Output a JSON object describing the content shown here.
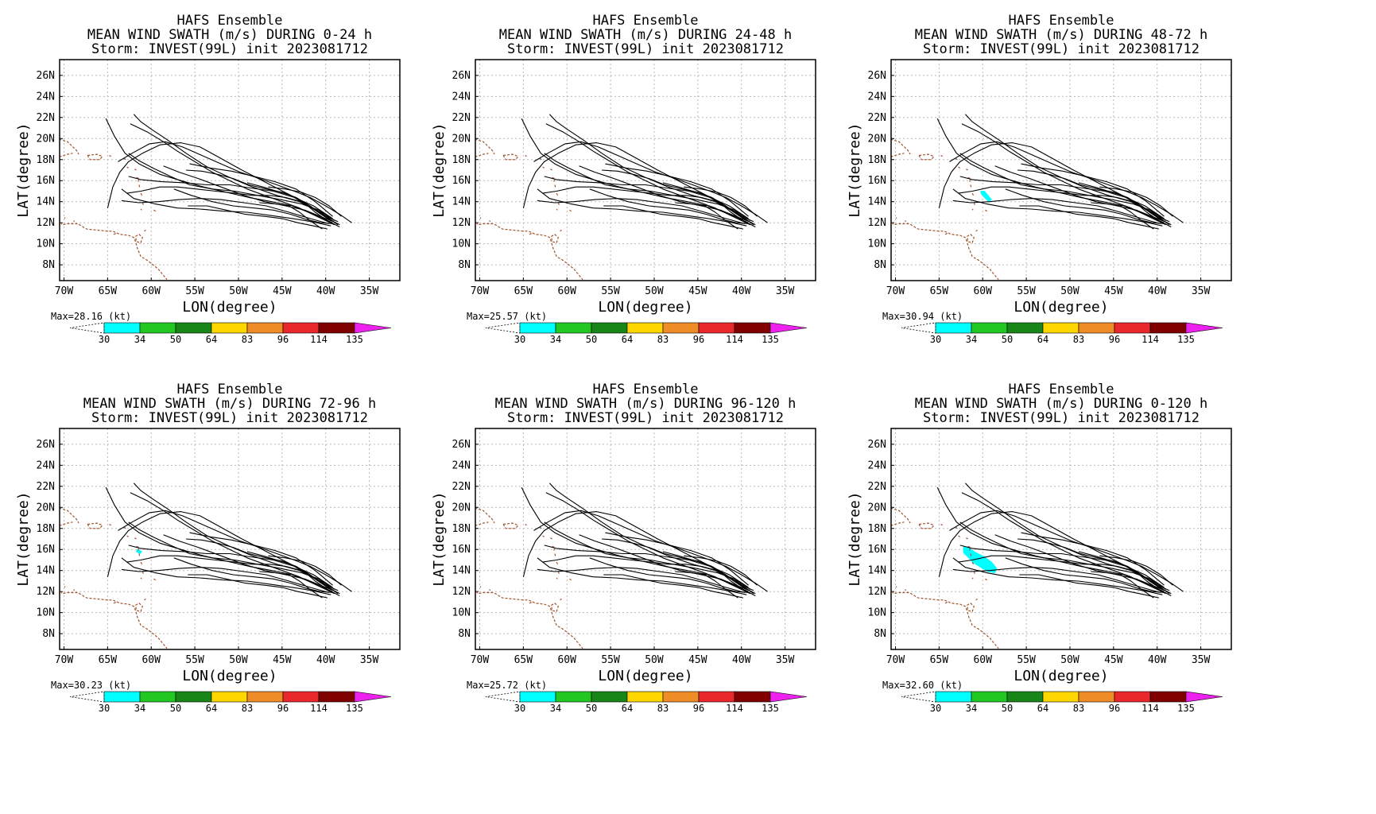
{
  "common": {
    "title_line1": "HAFS Ensemble",
    "title_line3": "Storm: INVEST(99L) init 2023081712",
    "xlabel": "LON(degree)",
    "ylabel": "LAT(degree)",
    "lon_ticks": [
      "70W",
      "65W",
      "60W",
      "55W",
      "50W",
      "45W",
      "40W",
      "35W"
    ],
    "lat_ticks": [
      "26N",
      "24N",
      "22N",
      "20N",
      "18N",
      "16N",
      "14N",
      "12N",
      "10N",
      "8N"
    ],
    "colorbar_levels": [
      "30",
      "34",
      "50",
      "64",
      "83",
      "96",
      "114",
      "135"
    ],
    "colorbar_colors": [
      "#00ffff",
      "#22c722",
      "#178517",
      "#ffd700",
      "#ee8c28",
      "#e8282a",
      "#800000",
      "#ee22ee"
    ],
    "track_color": "#000000",
    "coast_color": "#a0522d",
    "swath_color": "#00ffff"
  },
  "panels": [
    {
      "title_line2": "MEAN WIND SWATH (m/s) DURING  0-24 h",
      "max_label": "Max=28.16 (kt)",
      "max": 28.16,
      "swath": "none"
    },
    {
      "title_line2": "MEAN WIND SWATH (m/s) DURING 24-48 h",
      "max_label": "Max=25.57 (kt)",
      "max": 25.57,
      "swath": "none"
    },
    {
      "title_line2": "MEAN WIND SWATH (m/s) DURING 48-72 h",
      "max_label": "Max=30.94 (kt)",
      "max": 30.94,
      "swath": "small"
    },
    {
      "title_line2": "MEAN WIND SWATH (m/s) DURING 72-96 h",
      "max_label": "Max=30.23 (kt)",
      "max": 30.23,
      "swath": "tiny"
    },
    {
      "title_line2": "MEAN WIND SWATH (m/s) DURING 96-120 h",
      "max_label": "Max=25.72 (kt)",
      "max": 25.72,
      "swath": "none"
    },
    {
      "title_line2": "MEAN WIND SWATH (m/s) DURING 0-120 h",
      "max_label": "Max=32.60 (kt)",
      "max": 32.6,
      "swath": "large"
    }
  ],
  "chart_data": {
    "type": "map",
    "xlim": [
      -70.5,
      -31.5
    ],
    "ylim": [
      6.5,
      27.5
    ],
    "grid": true,
    "tracks": [
      [
        [
          -39,
          11.8
        ],
        [
          -41,
          12.6
        ],
        [
          -43,
          13.4
        ],
        [
          -45,
          14
        ],
        [
          -47,
          14.6
        ],
        [
          -49,
          15.2
        ],
        [
          -51,
          16
        ],
        [
          -53,
          16.8
        ],
        [
          -55,
          17.8
        ],
        [
          -57,
          18.8
        ],
        [
          -58.6,
          19.7
        ],
        [
          -60.4,
          20.6
        ],
        [
          -62.4,
          21.4
        ]
      ],
      [
        [
          -38.6,
          11.8
        ],
        [
          -40.6,
          13
        ],
        [
          -43,
          14
        ],
        [
          -45.6,
          14.6
        ],
        [
          -48.4,
          15.4
        ],
        [
          -51,
          16.3
        ],
        [
          -53.6,
          17.3
        ],
        [
          -56,
          18.6
        ],
        [
          -58.2,
          19.9
        ],
        [
          -60,
          20.9
        ],
        [
          -61.2,
          21.6
        ],
        [
          -62,
          22.3
        ]
      ],
      [
        [
          -39.2,
          12
        ],
        [
          -41.4,
          12.8
        ],
        [
          -43.8,
          13.6
        ],
        [
          -46.2,
          14
        ],
        [
          -48.8,
          14.4
        ],
        [
          -51.4,
          14.9
        ],
        [
          -54,
          15.4
        ],
        [
          -56.6,
          16
        ],
        [
          -59,
          16.6
        ],
        [
          -61.4,
          17.6
        ],
        [
          -63,
          18.6
        ],
        [
          -64.2,
          20.2
        ],
        [
          -65.2,
          21.9
        ]
      ],
      [
        [
          -39.4,
          12.2
        ],
        [
          -41.6,
          13.4
        ],
        [
          -44,
          14.6
        ],
        [
          -46.8,
          15.8
        ],
        [
          -49.6,
          17
        ],
        [
          -52.2,
          18.2
        ],
        [
          -54.4,
          19.2
        ],
        [
          -56.6,
          19.6
        ],
        [
          -59,
          19.4
        ],
        [
          -61,
          18.6
        ],
        [
          -62.6,
          17.8
        ],
        [
          -63.6,
          16.8
        ],
        [
          -64.4,
          15.4
        ],
        [
          -65,
          13.4
        ]
      ],
      [
        [
          -39.6,
          11.9
        ],
        [
          -41.8,
          12.4
        ],
        [
          -44.2,
          13
        ],
        [
          -46.8,
          13.6
        ],
        [
          -49.4,
          13.9
        ],
        [
          -52,
          14.2
        ],
        [
          -54.4,
          14.3
        ],
        [
          -56.8,
          14.2
        ],
        [
          -59.2,
          14
        ],
        [
          -61.4,
          13.9
        ],
        [
          -63.4,
          14.1
        ]
      ],
      [
        [
          -39.4,
          11.7
        ],
        [
          -41.6,
          12.1
        ],
        [
          -43.8,
          12.4
        ],
        [
          -46.4,
          12.7
        ],
        [
          -49,
          13
        ],
        [
          -51.8,
          13.1
        ],
        [
          -54.4,
          13.3
        ],
        [
          -57,
          13.4
        ],
        [
          -59.6,
          13.8
        ],
        [
          -62,
          14.3
        ],
        [
          -63.4,
          15.2
        ]
      ],
      [
        [
          -39,
          12.2
        ],
        [
          -40.8,
          13.2
        ],
        [
          -42.8,
          13.8
        ],
        [
          -45.2,
          14.2
        ],
        [
          -47.8,
          14.6
        ],
        [
          -50.4,
          15
        ],
        [
          -53,
          15.2
        ],
        [
          -55.6,
          15.6
        ],
        [
          -57.8,
          16.4
        ],
        [
          -59.8,
          17.2
        ],
        [
          -61.4,
          17.9
        ],
        [
          -62.6,
          18.6
        ]
      ],
      [
        [
          -39.2,
          12.4
        ],
        [
          -41.4,
          13.6
        ],
        [
          -43.6,
          14.4
        ],
        [
          -46,
          15
        ],
        [
          -48.6,
          15.3
        ],
        [
          -51,
          15.6
        ],
        [
          -53.6,
          15.6
        ],
        [
          -56.2,
          15.8
        ],
        [
          -58.8,
          15.9
        ],
        [
          -61.2,
          16.1
        ],
        [
          -62.6,
          16.4
        ]
      ],
      [
        [
          -38.8,
          12
        ],
        [
          -40.6,
          12.6
        ],
        [
          -42.4,
          13.2
        ],
        [
          -44.6,
          13.6
        ],
        [
          -47,
          14
        ],
        [
          -49.4,
          14.6
        ],
        [
          -52,
          15.4
        ],
        [
          -54.6,
          16.2
        ],
        [
          -56.8,
          16.8
        ],
        [
          -58.6,
          17.4
        ]
      ],
      [
        [
          -39.2,
          12.6
        ],
        [
          -41.2,
          14
        ],
        [
          -43.4,
          15.2
        ],
        [
          -45.8,
          15.9
        ],
        [
          -48.2,
          16.4
        ],
        [
          -50.8,
          16.9
        ],
        [
          -53.2,
          17.2
        ],
        [
          -55.6,
          17.6
        ]
      ],
      [
        [
          -38.4,
          11.6
        ],
        [
          -39.8,
          12.2
        ],
        [
          -41.2,
          13
        ],
        [
          -42.6,
          14
        ],
        [
          -44,
          14.6
        ],
        [
          -45.6,
          15
        ],
        [
          -47.2,
          15.4
        ],
        [
          -49,
          15.8
        ]
      ],
      [
        [
          -39,
          11.9
        ],
        [
          -40.6,
          12
        ],
        [
          -42.2,
          12.3
        ],
        [
          -44,
          12.8
        ],
        [
          -46,
          13.2
        ],
        [
          -48.2,
          13.4
        ],
        [
          -50.6,
          13.6
        ],
        [
          -53,
          14
        ],
        [
          -55.4,
          14.6
        ],
        [
          -57.4,
          15.2
        ]
      ],
      [
        [
          -38.6,
          12.1
        ],
        [
          -40.2,
          12.7
        ],
        [
          -41.8,
          13.6
        ],
        [
          -43.4,
          14.4
        ],
        [
          -45,
          14.9
        ],
        [
          -46.8,
          15.2
        ],
        [
          -48.8,
          15.6
        ],
        [
          -50.6,
          16.2
        ],
        [
          -52.4,
          16.6
        ],
        [
          -54.2,
          16.9
        ],
        [
          -56,
          17
        ]
      ],
      [
        [
          -37,
          12
        ],
        [
          -38.4,
          12.8
        ],
        [
          -40,
          13.6
        ],
        [
          -41.8,
          14.4
        ],
        [
          -43.6,
          15
        ],
        [
          -45.6,
          15.6
        ],
        [
          -47.6,
          16.2
        ],
        [
          -49.8,
          16.8
        ],
        [
          -52,
          17.6
        ],
        [
          -54.2,
          18.4
        ],
        [
          -56.4,
          19.2
        ],
        [
          -58.4,
          19.7
        ],
        [
          -60.2,
          19.5
        ],
        [
          -62.2,
          18.6
        ],
        [
          -63.8,
          17.8
        ]
      ],
      [
        [
          -38.4,
          11.8
        ],
        [
          -39.8,
          12.4
        ],
        [
          -41.2,
          13.2
        ],
        [
          -42.8,
          14
        ],
        [
          -44.6,
          14.4
        ],
        [
          -46.4,
          14.6
        ],
        [
          -48.4,
          14.6
        ],
        [
          -50.4,
          14.8
        ],
        [
          -52.6,
          15
        ],
        [
          -54.8,
          15.2
        ],
        [
          -57,
          15.4
        ],
        [
          -59,
          15.4
        ],
        [
          -61.2,
          15
        ],
        [
          -62.8,
          14.8
        ]
      ],
      [
        [
          -39.8,
          11.4
        ],
        [
          -41.4,
          11.7
        ],
        [
          -43.2,
          12
        ],
        [
          -45,
          12.4
        ],
        [
          -47,
          12.6
        ],
        [
          -49.2,
          12.8
        ],
        [
          -51.4,
          13.2
        ],
        [
          -53.6,
          13.6
        ],
        [
          -55.8,
          13.6
        ]
      ],
      [
        [
          -38.2,
          12.6
        ],
        [
          -39.6,
          13.6
        ],
        [
          -41.2,
          14.4
        ],
        [
          -42.8,
          14.9
        ],
        [
          -44.6,
          15.2
        ],
        [
          -46.6,
          15.4
        ]
      ],
      [
        [
          -40.4,
          11.4
        ],
        [
          -41.8,
          12.2
        ],
        [
          -43,
          13
        ],
        [
          -44.2,
          13.6
        ],
        [
          -45.8,
          13.8
        ],
        [
          -47.6,
          13.9
        ]
      ]
    ],
    "coastlines": [
      [
        [
          -71,
          19.8
        ],
        [
          -70.4,
          19.9
        ],
        [
          -69.6,
          19.7
        ],
        [
          -69.1,
          19.3
        ],
        [
          -68.6,
          18.9
        ],
        [
          -68.3,
          18.5
        ]
      ],
      [
        [
          -71,
          18.3
        ],
        [
          -70.4,
          18.3
        ],
        [
          -69.6,
          18.5
        ],
        [
          -69,
          18.6
        ]
      ],
      [
        [
          -67.3,
          18.4
        ],
        [
          -66.2,
          18.5
        ],
        [
          -65.6,
          18.3
        ],
        [
          -65.9,
          18
        ],
        [
          -67,
          18
        ],
        [
          -67.3,
          18.4
        ]
      ],
      [
        [
          -71,
          12.6
        ],
        [
          -70.2,
          11.8
        ],
        [
          -69.6,
          11.9
        ],
        [
          -68.4,
          11.9
        ],
        [
          -67.4,
          11.4
        ],
        [
          -66.2,
          11.3
        ],
        [
          -65,
          11.2
        ],
        [
          -64.4,
          11.2
        ],
        [
          -63.6,
          10.9
        ],
        [
          -62.6,
          10.8
        ],
        [
          -62,
          10.6
        ],
        [
          -61.8,
          10.2
        ],
        [
          -61.6,
          9.6
        ],
        [
          -61.2,
          8.8
        ],
        [
          -60.4,
          8.4
        ],
        [
          -59.8,
          8
        ],
        [
          -59.2,
          7.6
        ],
        [
          -58.6,
          7
        ],
        [
          -58.2,
          6.6
        ]
      ],
      [
        [
          -61.8,
          10.7
        ],
        [
          -61.4,
          10.9
        ],
        [
          -61,
          10.6
        ],
        [
          -61.2,
          10.1
        ],
        [
          -61.7,
          10.2
        ],
        [
          -61.8,
          10.7
        ]
      ],
      [
        [
          -60.8,
          11.2
        ],
        [
          -60.6,
          11.3
        ]
      ],
      [
        [
          -59.7,
          13.2
        ],
        [
          -59.5,
          13.1
        ]
      ],
      [
        [
          -61.2,
          13.3
        ],
        [
          -61.1,
          13.2
        ]
      ],
      [
        [
          -61,
          13.9
        ],
        [
          -60.9,
          13.7
        ]
      ],
      [
        [
          -61.2,
          14.8
        ],
        [
          -61,
          14.5
        ]
      ],
      [
        [
          -61.4,
          15.6
        ],
        [
          -61.3,
          15.3
        ]
      ],
      [
        [
          -61.7,
          16.3
        ],
        [
          -61.4,
          16.2
        ],
        [
          -61.5,
          15.9
        ]
      ],
      [
        [
          -61.9,
          17.1
        ],
        [
          -61.7,
          17.0
        ]
      ],
      [
        [
          -62.8,
          17.3
        ],
        [
          -62.6,
          17.2
        ]
      ],
      [
        [
          -63.1,
          18.1
        ],
        [
          -62.9,
          18.0
        ]
      ],
      [
        [
          -64.8,
          18.4
        ],
        [
          -64.6,
          18.3
        ]
      ],
      [
        [
          -64.3,
          10.9
        ],
        [
          -64,
          11
        ]
      ],
      [
        [
          -69.9,
          12.5
        ],
        [
          -69.9,
          12.4
        ]
      ],
      [
        [
          -68.9,
          12.2
        ],
        [
          -68.8,
          12.1
        ]
      ]
    ],
    "swaths": {
      "small": [
        [
          [
            -60.2,
            15.0
          ],
          [
            -59.8,
            15.0
          ],
          [
            -59.3,
            14.5
          ],
          [
            -59.0,
            14.2
          ],
          [
            -59.3,
            14.0
          ],
          [
            -59.8,
            14.4
          ],
          [
            -60.2,
            14.8
          ]
        ]
      ],
      "tiny": [
        [
          [
            -61.6,
            16.0
          ],
          [
            -61.1,
            15.8
          ],
          [
            -61.3,
            15.6
          ],
          [
            -61.7,
            15.8
          ]
        ]
      ],
      "large": [
        [
          [
            -62.2,
            16.3
          ],
          [
            -61.5,
            16.1
          ],
          [
            -60.8,
            15.7
          ],
          [
            -59.8,
            15.3
          ],
          [
            -59.0,
            14.8
          ],
          [
            -58.4,
            14.2
          ],
          [
            -58.6,
            13.8
          ],
          [
            -59.4,
            13.9
          ],
          [
            -60.2,
            14.3
          ],
          [
            -61.0,
            14.7
          ],
          [
            -61.6,
            15.2
          ],
          [
            -62.2,
            15.7
          ]
        ]
      ]
    }
  }
}
